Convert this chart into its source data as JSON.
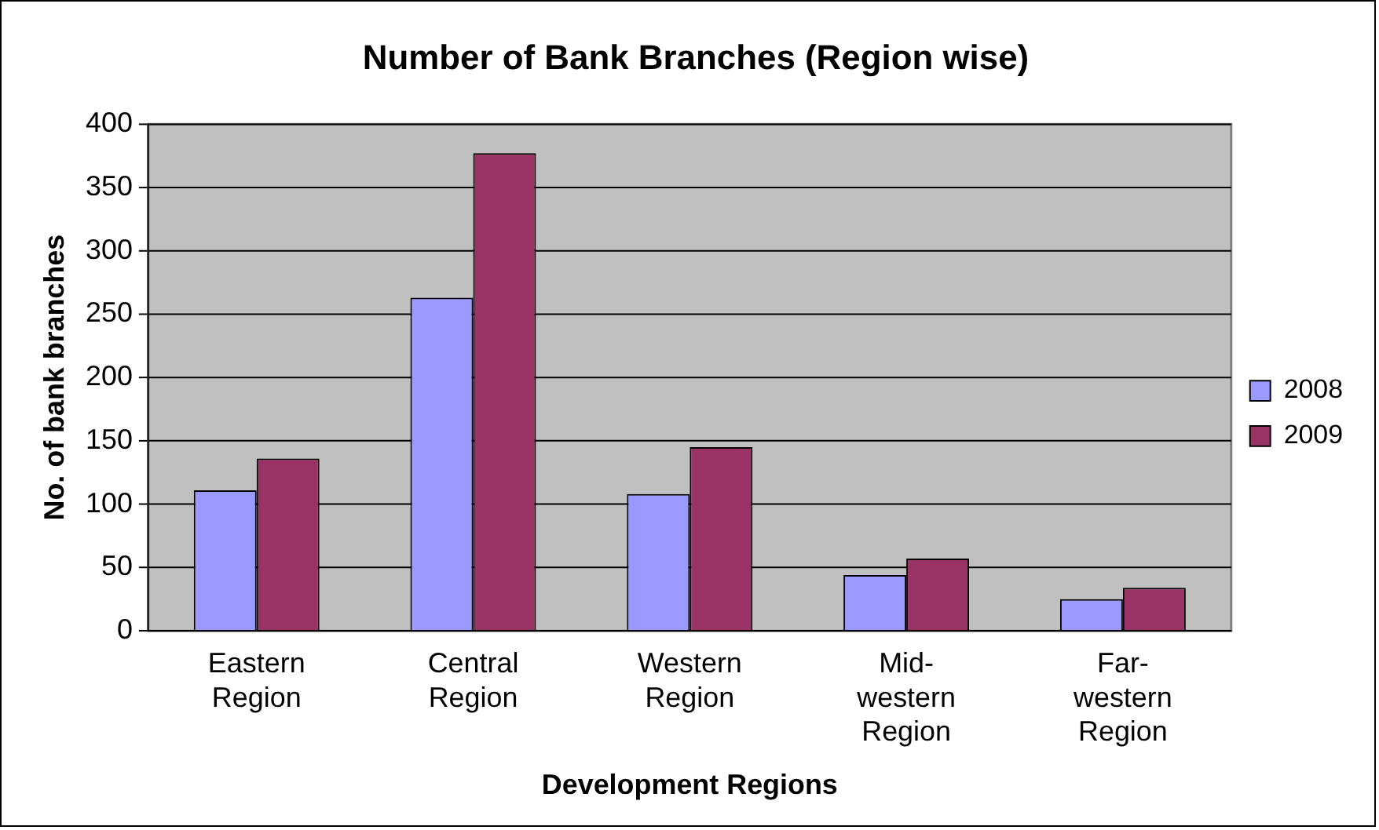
{
  "chart_data": {
    "type": "bar",
    "title": "Number of Bank Branches (Region wise)",
    "xlabel": "Development Regions",
    "ylabel": "No. of bank branches",
    "categories": [
      "Eastern Region",
      "Central Region",
      "Western Region",
      "Mid-western Region",
      "Far-western Region"
    ],
    "series": [
      {
        "name": "2008",
        "color": "#9999ff",
        "values": [
          111,
          263,
          108,
          44,
          25
        ]
      },
      {
        "name": "2009",
        "color": "#993366",
        "values": [
          136,
          377,
          145,
          57,
          34
        ]
      }
    ],
    "ylim": [
      0,
      400
    ],
    "yticks": [
      0,
      50,
      100,
      150,
      200,
      250,
      300,
      350,
      400
    ],
    "grid": "y",
    "legend": "right"
  }
}
